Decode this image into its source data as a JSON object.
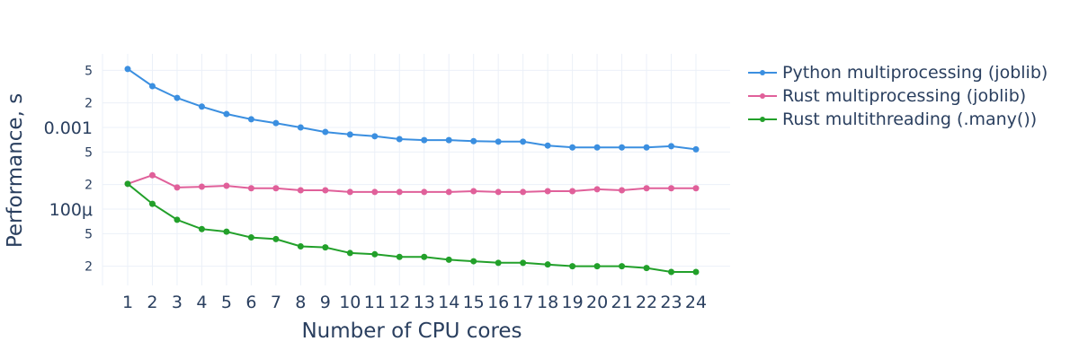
{
  "chart_data": {
    "type": "line",
    "title": "",
    "xlabel": "Number of CPU cores",
    "ylabel": "Performance, s",
    "yscale": "log",
    "ylim": [
      1.4e-05,
      0.0068
    ],
    "grid": true,
    "legend_position": "right",
    "x": [
      1,
      2,
      3,
      4,
      5,
      6,
      7,
      8,
      9,
      10,
      11,
      12,
      13,
      14,
      15,
      16,
      17,
      18,
      19,
      20,
      21,
      22,
      23,
      24
    ],
    "x_tick_labels": [
      "1",
      "2",
      "3",
      "4",
      "5",
      "6",
      "7",
      "8",
      "9",
      "10",
      "11",
      "12",
      "13",
      "14",
      "15",
      "16",
      "17",
      "18",
      "19",
      "20",
      "21",
      "22",
      "23",
      "24"
    ],
    "y_ticks": [
      {
        "value": 0.005,
        "label": "5",
        "major": false
      },
      {
        "value": 0.002,
        "label": "2",
        "major": false
      },
      {
        "value": 0.001,
        "label": "0.001",
        "major": true
      },
      {
        "value": 0.0005,
        "label": "5",
        "major": false
      },
      {
        "value": 0.0002,
        "label": "2",
        "major": false
      },
      {
        "value": 0.0001,
        "label": "100μ",
        "major": true
      },
      {
        "value": 5e-05,
        "label": "5",
        "major": false
      },
      {
        "value": 2e-05,
        "label": "2",
        "major": false
      }
    ],
    "series": [
      {
        "name": "Python multiprocessing (joblib)",
        "color": "#3b8fe0",
        "values": [
          0.0052,
          0.0032,
          0.0023,
          0.0018,
          0.00146,
          0.00126,
          0.00113,
          0.001,
          0.00088,
          0.00082,
          0.00078,
          0.00072,
          0.0007,
          0.0007,
          0.00068,
          0.00067,
          0.00067,
          0.0006,
          0.00057,
          0.00057,
          0.00057,
          0.00057,
          0.00059,
          0.00054
        ]
      },
      {
        "name": "Rust multiprocessing (joblib)",
        "color": "#e0609a",
        "values": [
          0.000204,
          0.00026,
          0.000184,
          0.000188,
          0.000193,
          0.00018,
          0.00018,
          0.00017,
          0.00017,
          0.000162,
          0.000162,
          0.000162,
          0.000162,
          0.000162,
          0.000166,
          0.000162,
          0.000162,
          0.000166,
          0.000166,
          0.000175,
          0.00017,
          0.00018,
          0.00018,
          0.00018
        ]
      },
      {
        "name": "Rust multithreading (.many())",
        "color": "#22a02a",
        "values": [
          0.000204,
          0.000116,
          7.4e-05,
          5.7e-05,
          5.3e-05,
          4.5e-05,
          4.3e-05,
          3.5e-05,
          3.4e-05,
          2.9e-05,
          2.8e-05,
          2.6e-05,
          2.6e-05,
          2.4e-05,
          2.3e-05,
          2.2e-05,
          2.2e-05,
          2.1e-05,
          2e-05,
          2e-05,
          2e-05,
          1.9e-05,
          1.7e-05,
          1.7e-05
        ]
      }
    ]
  },
  "legend": {
    "items": [
      {
        "label": "Python multiprocessing (joblib)",
        "color": "#3b8fe0"
      },
      {
        "label": "Rust multiprocessing (joblib)",
        "color": "#e0609a"
      },
      {
        "label": "Rust multithreading (.many())",
        "color": "#22a02a"
      }
    ]
  },
  "axes": {
    "x_title": "Number of CPU cores",
    "y_title": "Performance, s"
  }
}
